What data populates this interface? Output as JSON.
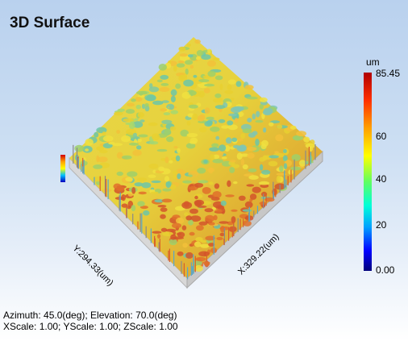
{
  "title": "3D Surface",
  "axes": {
    "x_label": "X:329.22(um)",
    "y_label": "Y:294.33(um)"
  },
  "colorbar": {
    "unit": "um",
    "ticks": [
      "85.45",
      "60",
      "40",
      "20",
      "0.00"
    ],
    "tick_values": [
      85.45,
      60,
      40,
      20,
      0.0
    ],
    "min": 0.0,
    "max": 85.45,
    "colors": [
      "#00007a",
      "#0000ff",
      "#00a0ff",
      "#00ffd8",
      "#60ff60",
      "#ffff00",
      "#ffa000",
      "#ff3000",
      "#b00000"
    ]
  },
  "view_info": {
    "line1": "Azimuth: 45.0(deg); Elevation: 70.0(deg)",
    "line2": "XScale: 1.00; YScale: 1.00; ZScale: 1.00"
  }
}
